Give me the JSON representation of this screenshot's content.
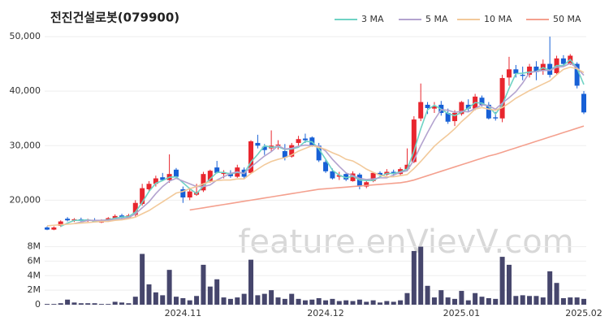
{
  "chart_data": {
    "type": "candlestick",
    "title": "전진건설로봇(079900)",
    "watermark": "feature.enVievV.com",
    "categories": [
      null,
      null,
      null,
      null,
      null,
      null,
      null,
      null,
      null,
      null,
      null,
      null,
      null,
      null,
      null,
      null,
      null,
      null,
      null,
      null,
      "2024.11",
      null,
      null,
      null,
      null,
      null,
      null,
      null,
      null,
      null,
      null,
      null,
      null,
      null,
      null,
      null,
      null,
      null,
      null,
      null,
      null,
      "2024.12",
      null,
      null,
      null,
      null,
      null,
      null,
      null,
      null,
      null,
      null,
      null,
      null,
      null,
      null,
      null,
      null,
      null,
      null,
      null,
      "2025.01",
      null,
      null,
      null,
      null,
      null,
      null,
      null,
      null,
      null,
      null,
      null,
      null,
      null,
      null,
      null,
      null,
      null,
      "2025.02"
    ],
    "open": [
      15000,
      14600,
      15300,
      16600,
      16300,
      16500,
      16200,
      16400,
      15900,
      16300,
      16700,
      17200,
      16800,
      17300,
      19300,
      22000,
      23000,
      24200,
      23700,
      25600,
      22000,
      20500,
      21000,
      21800,
      23500,
      26000,
      24800,
      25000,
      24300,
      25600,
      25000,
      30500,
      29800,
      29500,
      30000,
      29000,
      28000,
      30500,
      31300,
      31500,
      30000,
      27000,
      25300,
      24300,
      24800,
      23500,
      24700,
      22500,
      23500,
      25000,
      24700,
      25200,
      24800,
      25700,
      27000,
      35000,
      37500,
      36800,
      37500,
      36000,
      34500,
      35800,
      37500,
      36800,
      38800,
      37500,
      35200,
      35000,
      42500,
      44000,
      43000,
      43000,
      44500,
      43800,
      45000,
      43300,
      46000,
      45000,
      45000,
      39500
    ],
    "high": [
      15200,
      15200,
      16300,
      16900,
      16700,
      16800,
      16600,
      16700,
      16500,
      16900,
      17400,
      17500,
      17500,
      20000,
      23000,
      23500,
      24500,
      25000,
      28400,
      25900,
      22500,
      22300,
      23000,
      25200,
      25600,
      27200,
      25500,
      25500,
      26500,
      26000,
      31000,
      32000,
      30300,
      32800,
      31000,
      30300,
      30500,
      31800,
      32200,
      31700,
      30500,
      27500,
      25800,
      25200,
      25000,
      25300,
      25000,
      23500,
      25200,
      25300,
      25700,
      25600,
      26000,
      29500,
      35400,
      41400,
      38000,
      38000,
      38200,
      36800,
      36500,
      38200,
      38500,
      39500,
      39200,
      38000,
      36200,
      43000,
      46300,
      44800,
      44500,
      45000,
      45500,
      45800,
      50000,
      46500,
      46600,
      46800,
      45300,
      40000
    ],
    "low": [
      14500,
      14500,
      15100,
      16100,
      16000,
      16100,
      16000,
      16000,
      15800,
      16100,
      16500,
      16700,
      16700,
      17000,
      19000,
      21500,
      22500,
      23500,
      23200,
      24000,
      19500,
      20000,
      20800,
      21500,
      23200,
      24900,
      24000,
      24100,
      24100,
      23900,
      24800,
      29500,
      28300,
      29000,
      29300,
      27300,
      27800,
      30000,
      30500,
      29800,
      27000,
      25000,
      23800,
      23700,
      23500,
      23400,
      22000,
      22200,
      23300,
      24400,
      24500,
      24400,
      24600,
      25400,
      26800,
      34500,
      35800,
      36000,
      35500,
      34000,
      33600,
      35500,
      36200,
      36500,
      37200,
      34800,
      34600,
      34300,
      41000,
      42500,
      42000,
      42500,
      42000,
      43000,
      42500,
      43000,
      44500,
      44800,
      40500,
      35800
    ],
    "close": [
      14600,
      15000,
      16100,
      16300,
      16500,
      16200,
      16400,
      16100,
      16300,
      16700,
      17100,
      16800,
      17200,
      19500,
      22200,
      23000,
      24000,
      23700,
      24800,
      24300,
      20500,
      21600,
      21500,
      24800,
      25400,
      25000,
      25000,
      24400,
      26000,
      24300,
      30800,
      30000,
      29200,
      30000,
      30200,
      27800,
      30100,
      31200,
      31000,
      30000,
      27300,
      25300,
      24000,
      24600,
      23800,
      24900,
      22500,
      23300,
      25000,
      24600,
      25200,
      24800,
      25700,
      26500,
      34800,
      38000,
      36900,
      37200,
      36000,
      34400,
      36000,
      38000,
      36800,
      39000,
      37500,
      35000,
      35000,
      42400,
      44000,
      43200,
      42800,
      44500,
      43500,
      45000,
      43000,
      46000,
      45000,
      46500,
      41000,
      36100
    ],
    "up_color": "#e8262e",
    "down_color": "#1760d6",
    "ylim": [
      13500,
      51500
    ],
    "yticks": [
      {
        "value": 20000,
        "label": "20,000"
      },
      {
        "value": 30000,
        "label": "30,000"
      },
      {
        "value": 40000,
        "label": "40,000"
      },
      {
        "value": 50000,
        "label": "50,000"
      }
    ],
    "grid": true,
    "legend": "top-right",
    "series": [
      {
        "name": "3 MA",
        "color": "#6fd3c4",
        "values": [
          null,
          null,
          15200,
          15800,
          16300,
          16300,
          16400,
          16200,
          16300,
          16400,
          16700,
          16900,
          17000,
          17800,
          19600,
          21600,
          23100,
          23600,
          24200,
          24300,
          23200,
          22100,
          21200,
          22600,
          23900,
          25100,
          25100,
          24800,
          25100,
          24900,
          27000,
          28400,
          30000,
          29700,
          29800,
          29300,
          29400,
          29700,
          30800,
          30700,
          29400,
          27500,
          25500,
          24600,
          24100,
          24400,
          23700,
          23600,
          23600,
          24300,
          24900,
          24900,
          25200,
          25700,
          29000,
          33100,
          36600,
          37400,
          36700,
          35900,
          35500,
          36100,
          36900,
          37900,
          37800,
          37200,
          35800,
          37500,
          40500,
          43200,
          43300,
          43500,
          43600,
          44300,
          43800,
          44700,
          44700,
          45800,
          44200,
          41200
        ]
      },
      {
        "name": "5 MA",
        "color": "#b3a3cf",
        "values": [
          null,
          null,
          null,
          null,
          15700,
          16000,
          16300,
          16300,
          16300,
          16300,
          16500,
          16600,
          16800,
          17500,
          18600,
          19700,
          21200,
          22500,
          23500,
          24000,
          23500,
          23000,
          22500,
          22500,
          22800,
          23700,
          24300,
          24900,
          25200,
          24900,
          26100,
          27100,
          28100,
          28900,
          30000,
          29400,
          29500,
          29900,
          30100,
          30000,
          29900,
          29000,
          27500,
          26200,
          25000,
          24500,
          24000,
          23800,
          23900,
          24100,
          24100,
          24600,
          25100,
          25400,
          27400,
          30000,
          32400,
          34700,
          36600,
          36500,
          36100,
          36300,
          36200,
          36800,
          37500,
          37300,
          36700,
          37800,
          38800,
          39900,
          41500,
          43400,
          43600,
          43800,
          43800,
          44400,
          44500,
          45100,
          44300,
          42900
        ]
      },
      {
        "name": "10 MA",
        "color": "#f2c99a",
        "values": [
          15300,
          15400,
          15500,
          15600,
          15700,
          15800,
          15900,
          16000,
          16100,
          16100,
          16300,
          16400,
          16600,
          16900,
          17500,
          18100,
          18900,
          19700,
          20500,
          21300,
          21600,
          22100,
          22500,
          23000,
          23400,
          23600,
          23700,
          23700,
          23900,
          23900,
          24900,
          25700,
          26500,
          27100,
          27500,
          27800,
          28300,
          29000,
          29500,
          30000,
          29700,
          29300,
          28700,
          28200,
          27500,
          27200,
          26500,
          25700,
          25100,
          24600,
          24300,
          24300,
          24500,
          24700,
          25800,
          27100,
          28500,
          29900,
          31000,
          32000,
          33100,
          34400,
          35500,
          36700,
          37000,
          36700,
          36500,
          37000,
          37800,
          38700,
          39400,
          40100,
          40700,
          41300,
          41900,
          43000,
          44000,
          44400,
          44100,
          43400
        ]
      },
      {
        "name": "50 MA",
        "color": "#f4a08e",
        "values": [
          null,
          null,
          null,
          null,
          null,
          null,
          null,
          null,
          null,
          null,
          null,
          null,
          null,
          null,
          null,
          null,
          null,
          null,
          null,
          null,
          null,
          18200,
          18400,
          18600,
          18800,
          19000,
          19200,
          19400,
          19600,
          19800,
          20000,
          20200,
          20400,
          20600,
          20800,
          21000,
          21200,
          21400,
          21600,
          21800,
          22000,
          22100,
          22200,
          22300,
          22400,
          22500,
          22600,
          22700,
          22800,
          22900,
          23000,
          23100,
          23200,
          23400,
          23700,
          24100,
          24500,
          24900,
          25300,
          25700,
          26100,
          26500,
          26900,
          27300,
          27700,
          28100,
          28400,
          28800,
          29200,
          29600,
          30000,
          30400,
          30800,
          31200,
          31600,
          32000,
          32400,
          32800,
          33200,
          33600
        ]
      }
    ],
    "volume": {
      "color": "#46466c",
      "values": [
        100000,
        100000,
        200000,
        700000,
        300000,
        200000,
        200000,
        200000,
        100000,
        100000,
        400000,
        300000,
        200000,
        1100000,
        7000000,
        2800000,
        1700000,
        1300000,
        4800000,
        1100000,
        900000,
        600000,
        1200000,
        5500000,
        2500000,
        3500000,
        1000000,
        800000,
        1000000,
        1500000,
        6200000,
        1300000,
        1500000,
        2000000,
        1000000,
        800000,
        1500000,
        800000,
        600000,
        700000,
        900000,
        600000,
        800000,
        500000,
        600000,
        500000,
        700000,
        400000,
        600000,
        300000,
        500000,
        400000,
        600000,
        1600000,
        7400000,
        8000000,
        2600000,
        1000000,
        2000000,
        1000000,
        800000,
        1900000,
        600000,
        1600000,
        1100000,
        900000,
        800000,
        6600000,
        5500000,
        1200000,
        1300000,
        1200000,
        1200000,
        1000000,
        4600000,
        3000000,
        900000,
        1000000,
        1000000,
        800000
      ],
      "ylim": [
        0,
        8400000
      ],
      "yticks": [
        0,
        {
          "value": 2000000,
          "label": "2M"
        },
        {
          "value": 4000000,
          "label": "4M"
        },
        {
          "value": 6000000,
          "label": "6M"
        },
        {
          "value": 8000000,
          "label": "8M"
        }
      ]
    }
  }
}
